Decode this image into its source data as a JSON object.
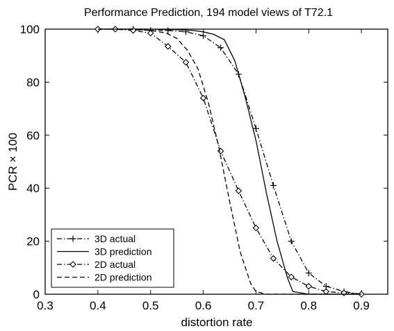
{
  "chart_data": {
    "type": "line",
    "title": "Performance Prediction, 194 model views of T72.1",
    "xlabel": "distortion rate",
    "ylabel": "PCR × 100",
    "xlim": [
      0.3,
      0.95
    ],
    "ylim": [
      0,
      100
    ],
    "xticks": [
      0.3,
      0.4,
      0.5,
      0.6,
      0.7,
      0.8,
      0.9
    ],
    "xtick_labels": [
      "0.3",
      "0.4",
      "0.5",
      "0.6",
      "0.7",
      "0.8",
      "0.9"
    ],
    "yticks": [
      0,
      20,
      40,
      60,
      80,
      100
    ],
    "ytick_labels": [
      "0",
      "20",
      "40",
      "60",
      "80",
      "100"
    ],
    "grid": false,
    "legend_position": "bottom-left",
    "series": [
      {
        "name": "3D actual",
        "line_style": "dashdot",
        "marker": "plus",
        "color": "#000000",
        "x": [
          0.4,
          0.433,
          0.467,
          0.5,
          0.533,
          0.567,
          0.6,
          0.633,
          0.667,
          0.7,
          0.733,
          0.767,
          0.8,
          0.833,
          0.867,
          0.9
        ],
        "y": [
          100,
          100,
          100,
          99.5,
          99.5,
          99,
          97.5,
          93,
          83,
          62.5,
          41,
          20,
          8,
          3,
          1,
          0
        ]
      },
      {
        "name": "3D prediction",
        "line_style": "solid",
        "marker": "none",
        "color": "#000000",
        "x": [
          0.4,
          0.45,
          0.5,
          0.55,
          0.58,
          0.6,
          0.62,
          0.64,
          0.66,
          0.68,
          0.7,
          0.72,
          0.74,
          0.76,
          0.77,
          0.8,
          0.9
        ],
        "y": [
          100,
          100,
          100,
          99.8,
          99.5,
          99,
          98,
          96,
          88,
          74,
          58,
          38,
          20,
          6,
          1,
          0,
          0
        ]
      },
      {
        "name": "2D actual",
        "line_style": "dashdot",
        "marker": "diamond",
        "color": "#000000",
        "x": [
          0.4,
          0.433,
          0.467,
          0.5,
          0.533,
          0.567,
          0.6,
          0.633,
          0.667,
          0.7,
          0.733,
          0.767,
          0.8,
          0.833,
          0.867,
          0.9
        ],
        "y": [
          100,
          100,
          99.5,
          98.5,
          93.5,
          87.5,
          74,
          54,
          39,
          25,
          13.5,
          6.5,
          3,
          1,
          0.5,
          0
        ]
      },
      {
        "name": "2D prediction",
        "line_style": "dashed",
        "marker": "none",
        "color": "#000000",
        "x": [
          0.4,
          0.45,
          0.5,
          0.53,
          0.55,
          0.57,
          0.59,
          0.61,
          0.63,
          0.65,
          0.67,
          0.69,
          0.7,
          0.72,
          0.8,
          0.9
        ],
        "y": [
          100,
          100,
          99.5,
          98.5,
          96.5,
          92,
          85,
          72,
          55,
          35,
          16,
          4,
          1,
          0,
          0,
          0
        ]
      }
    ]
  }
}
